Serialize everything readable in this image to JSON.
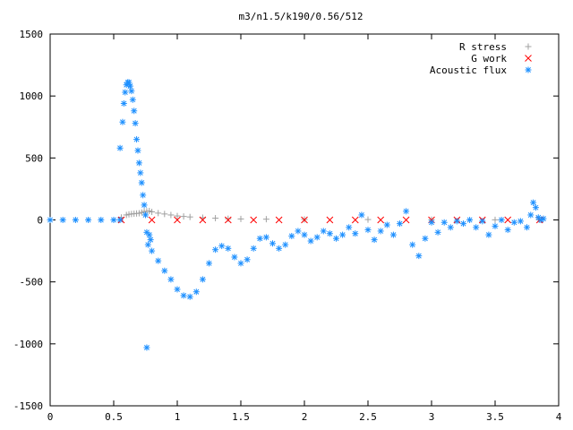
{
  "chart_data": {
    "type": "scatter",
    "title": "m3/n1.5/k190/0.56/512",
    "xlabel": "",
    "ylabel": "",
    "xlim": [
      0,
      4
    ],
    "ylim": [
      -1500,
      1500
    ],
    "xticks": [
      "0",
      "0.5",
      "1",
      "1.5",
      "2",
      "2.5",
      "3",
      "3.5",
      "4"
    ],
    "yticks": [
      "1500",
      "1000",
      "500",
      "0",
      "-500",
      "-1000",
      "-1500"
    ],
    "legend_position": "top-right",
    "series": [
      {
        "name": "R stress",
        "marker": "+",
        "color": "#a0a0a0",
        "points": [
          [
            0.56,
            20
          ],
          [
            0.6,
            40
          ],
          [
            0.62,
            45
          ],
          [
            0.64,
            48
          ],
          [
            0.66,
            50
          ],
          [
            0.68,
            52
          ],
          [
            0.7,
            54
          ],
          [
            0.72,
            60
          ],
          [
            0.74,
            68
          ],
          [
            0.76,
            70
          ],
          [
            0.78,
            72
          ],
          [
            0.8,
            65
          ],
          [
            0.85,
            55
          ],
          [
            0.9,
            48
          ],
          [
            0.95,
            40
          ],
          [
            1.0,
            32
          ],
          [
            1.05,
            28
          ],
          [
            1.1,
            24
          ],
          [
            1.2,
            18
          ],
          [
            1.3,
            14
          ],
          [
            1.4,
            10
          ],
          [
            1.5,
            8
          ],
          [
            1.7,
            6
          ],
          [
            2.0,
            4
          ],
          [
            2.5,
            3
          ],
          [
            3.0,
            2
          ],
          [
            3.5,
            1
          ],
          [
            3.85,
            1
          ]
        ]
      },
      {
        "name": "G work",
        "marker": "x",
        "color": "#ff0000",
        "points": [
          [
            0.56,
            0
          ],
          [
            0.8,
            0
          ],
          [
            1.0,
            0
          ],
          [
            1.2,
            0
          ],
          [
            1.4,
            0
          ],
          [
            1.6,
            0
          ],
          [
            1.8,
            0
          ],
          [
            2.0,
            0
          ],
          [
            2.2,
            0
          ],
          [
            2.4,
            0
          ],
          [
            2.6,
            0
          ],
          [
            2.8,
            0
          ],
          [
            3.0,
            0
          ],
          [
            3.2,
            0
          ],
          [
            3.4,
            0
          ],
          [
            3.6,
            0
          ],
          [
            3.85,
            0
          ]
        ]
      },
      {
        "name": "Acoustic flux",
        "marker": "*",
        "color": "#1e90ff",
        "points": [
          [
            0.0,
            0
          ],
          [
            0.1,
            0
          ],
          [
            0.2,
            0
          ],
          [
            0.3,
            0
          ],
          [
            0.4,
            0
          ],
          [
            0.5,
            0
          ],
          [
            0.55,
            0
          ],
          [
            0.55,
            580
          ],
          [
            0.57,
            790
          ],
          [
            0.58,
            940
          ],
          [
            0.59,
            1030
          ],
          [
            0.6,
            1090
          ],
          [
            0.61,
            1110
          ],
          [
            0.62,
            1110
          ],
          [
            0.63,
            1080
          ],
          [
            0.64,
            1040
          ],
          [
            0.65,
            970
          ],
          [
            0.66,
            880
          ],
          [
            0.67,
            780
          ],
          [
            0.68,
            650
          ],
          [
            0.69,
            560
          ],
          [
            0.7,
            460
          ],
          [
            0.71,
            380
          ],
          [
            0.72,
            300
          ],
          [
            0.73,
            200
          ],
          [
            0.74,
            120
          ],
          [
            0.75,
            40
          ],
          [
            0.76,
            -100
          ],
          [
            0.77,
            -200
          ],
          [
            0.78,
            -120
          ],
          [
            0.79,
            -160
          ],
          [
            0.76,
            -1030
          ],
          [
            0.8,
            -250
          ],
          [
            0.85,
            -330
          ],
          [
            0.9,
            -410
          ],
          [
            0.95,
            -480
          ],
          [
            1.0,
            -560
          ],
          [
            1.05,
            -610
          ],
          [
            1.1,
            -620
          ],
          [
            1.15,
            -580
          ],
          [
            1.2,
            -480
          ],
          [
            1.25,
            -350
          ],
          [
            1.3,
            -240
          ],
          [
            1.35,
            -210
          ],
          [
            1.4,
            -230
          ],
          [
            1.45,
            -300
          ],
          [
            1.5,
            -350
          ],
          [
            1.55,
            -320
          ],
          [
            1.6,
            -230
          ],
          [
            1.65,
            -150
          ],
          [
            1.7,
            -140
          ],
          [
            1.75,
            -190
          ],
          [
            1.8,
            -230
          ],
          [
            1.85,
            -200
          ],
          [
            1.9,
            -130
          ],
          [
            1.95,
            -90
          ],
          [
            2.0,
            -120
          ],
          [
            2.05,
            -170
          ],
          [
            2.1,
            -140
          ],
          [
            2.15,
            -90
          ],
          [
            2.2,
            -110
          ],
          [
            2.25,
            -150
          ],
          [
            2.3,
            -120
          ],
          [
            2.35,
            -60
          ],
          [
            2.4,
            -110
          ],
          [
            2.45,
            40
          ],
          [
            2.5,
            -80
          ],
          [
            2.55,
            -160
          ],
          [
            2.6,
            -90
          ],
          [
            2.65,
            -40
          ],
          [
            2.7,
            -120
          ],
          [
            2.75,
            -30
          ],
          [
            2.8,
            70
          ],
          [
            2.85,
            -200
          ],
          [
            2.9,
            -290
          ],
          [
            2.95,
            -150
          ],
          [
            3.0,
            -20
          ],
          [
            3.05,
            -100
          ],
          [
            3.1,
            -20
          ],
          [
            3.15,
            -60
          ],
          [
            3.2,
            -10
          ],
          [
            3.25,
            -30
          ],
          [
            3.3,
            0
          ],
          [
            3.35,
            -60
          ],
          [
            3.4,
            -10
          ],
          [
            3.45,
            -120
          ],
          [
            3.5,
            -50
          ],
          [
            3.55,
            0
          ],
          [
            3.6,
            -80
          ],
          [
            3.65,
            -20
          ],
          [
            3.7,
            -10
          ],
          [
            3.75,
            -60
          ],
          [
            3.78,
            40
          ],
          [
            3.8,
            140
          ],
          [
            3.82,
            100
          ],
          [
            3.84,
            20
          ],
          [
            3.86,
            0
          ],
          [
            3.88,
            10
          ]
        ]
      }
    ]
  }
}
